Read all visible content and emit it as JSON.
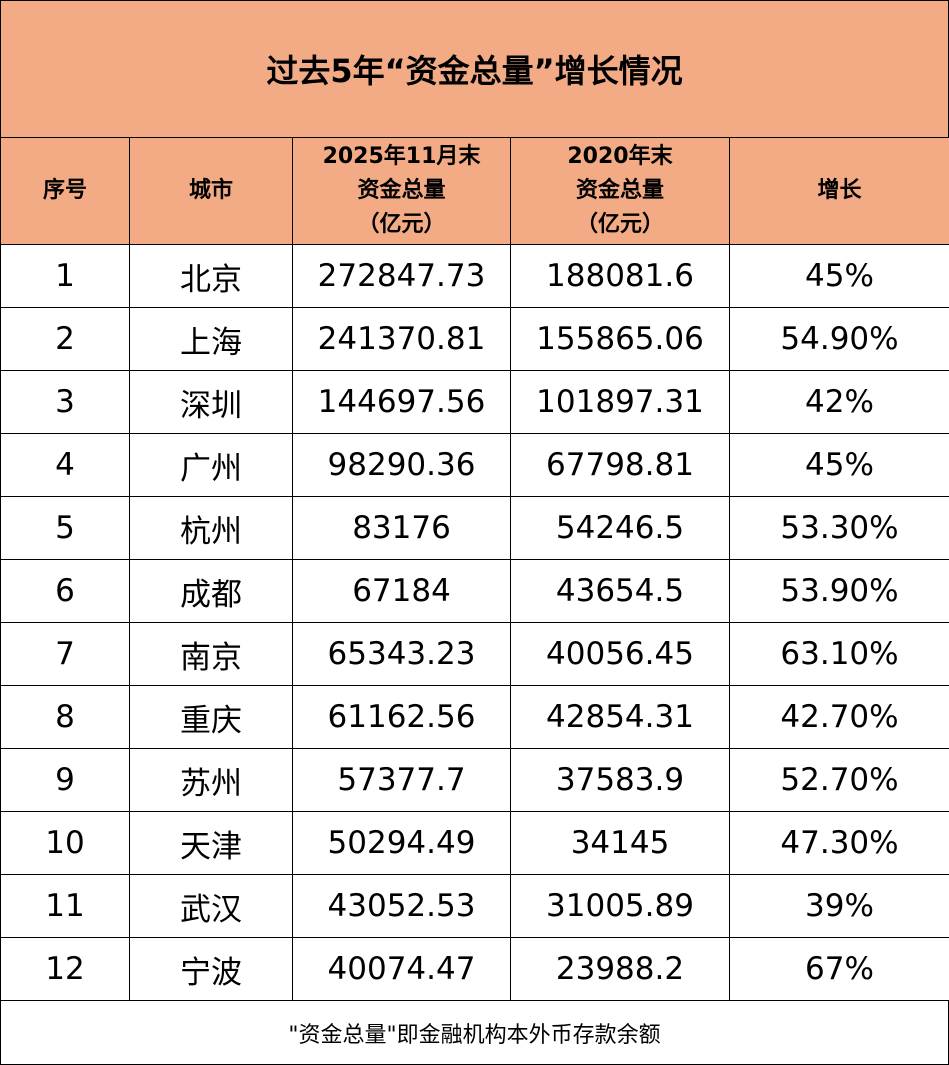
{
  "title": "过去5年“资金总量”增长情况",
  "headers": {
    "index": "序号",
    "city": "城市",
    "total_2025": [
      "2025年11月末",
      "资金总量",
      "（亿元）"
    ],
    "total_2020": [
      "2020年末",
      "资金总量",
      "（亿元）"
    ],
    "growth": "增长"
  },
  "rows": [
    {
      "index": "1",
      "city": "北京",
      "total_2025": "272847.73",
      "total_2020": "188081.6",
      "growth": "45%"
    },
    {
      "index": "2",
      "city": "上海",
      "total_2025": "241370.81",
      "total_2020": "155865.06",
      "growth": "54.90%"
    },
    {
      "index": "3",
      "city": "深圳",
      "total_2025": "144697.56",
      "total_2020": "101897.31",
      "growth": "42%"
    },
    {
      "index": "4",
      "city": "广州",
      "total_2025": "98290.36",
      "total_2020": "67798.81",
      "growth": "45%"
    },
    {
      "index": "5",
      "city": "杭州",
      "total_2025": "83176",
      "total_2020": "54246.5",
      "growth": "53.30%"
    },
    {
      "index": "6",
      "city": "成都",
      "total_2025": "67184",
      "total_2020": "43654.5",
      "growth": "53.90%"
    },
    {
      "index": "7",
      "city": "南京",
      "total_2025": "65343.23",
      "total_2020": "40056.45",
      "growth": "63.10%"
    },
    {
      "index": "8",
      "city": "重庆",
      "total_2025": "61162.56",
      "total_2020": "42854.31",
      "growth": "42.70%"
    },
    {
      "index": "9",
      "city": "苏州",
      "total_2025": "57377.7",
      "total_2020": "37583.9",
      "growth": "52.70%"
    },
    {
      "index": "10",
      "city": "天津",
      "total_2025": "50294.49",
      "total_2020": "34145",
      "growth": "47.30%"
    },
    {
      "index": "11",
      "city": "武汉",
      "total_2025": "43052.53",
      "total_2020": "31005.89",
      "growth": "39%"
    },
    {
      "index": "12",
      "city": "宁波",
      "total_2025": "40074.47",
      "total_2020": "23988.2",
      "growth": "67%"
    }
  ],
  "footnote": "\"资金总量\"即金融机构本外币存款余额",
  "colors": {
    "header_bg": "#f2ab84",
    "border": "#000000",
    "body_bg": "#ffffff"
  }
}
